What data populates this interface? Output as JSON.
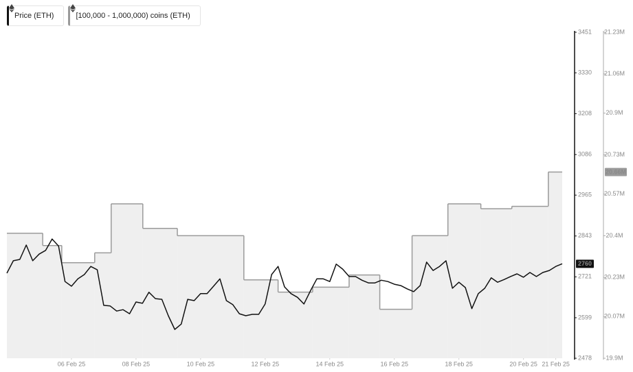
{
  "chart_data": {
    "type": "line",
    "xlim": [
      4,
      21.2
    ],
    "xticks": [
      {
        "value": 6,
        "label": "06 Feb 25"
      },
      {
        "value": 8,
        "label": "08 Feb 25"
      },
      {
        "value": 10,
        "label": "10 Feb 25"
      },
      {
        "value": 12,
        "label": "12 Feb 25"
      },
      {
        "value": 14,
        "label": "14 Feb 25"
      },
      {
        "value": 16,
        "label": "16 Feb 25"
      },
      {
        "value": 18,
        "label": "18 Feb 25"
      },
      {
        "value": 20,
        "label": "20 Feb 25"
      },
      {
        "value": 21,
        "label": "21 Feb 25"
      }
    ],
    "ylim": [
      2478,
      3451
    ],
    "yticks": [
      2478,
      2599,
      2721,
      2843,
      2965,
      3086,
      3208,
      3330,
      3451
    ],
    "y2lim": [
      19.9,
      21.23
    ],
    "y2ticks": [
      {
        "value": 19.9,
        "label": "19.9M"
      },
      {
        "value": 20.07,
        "label": "20.07M"
      },
      {
        "value": 20.23,
        "label": "20.23M"
      },
      {
        "value": 20.4,
        "label": "20.4M"
      },
      {
        "value": 20.57,
        "label": "20.57M"
      },
      {
        "value": 20.73,
        "label": "20.73M"
      },
      {
        "value": 20.9,
        "label": "20.9M"
      },
      {
        "value": 21.06,
        "label": "21.06M"
      },
      {
        "value": 21.23,
        "label": "21.23M"
      }
    ],
    "series": [
      {
        "name": "Price (ETH)",
        "color": "#111111",
        "x": [
          4,
          4.2,
          4.4,
          4.6,
          4.8,
          5,
          5.2,
          5.4,
          5.6,
          5.8,
          6,
          6.2,
          6.4,
          6.6,
          6.8,
          7,
          7.2,
          7.4,
          7.6,
          7.8,
          8,
          8.2,
          8.4,
          8.6,
          8.8,
          9,
          9.2,
          9.4,
          9.6,
          9.8,
          10,
          10.2,
          10.4,
          10.6,
          10.8,
          11,
          11.2,
          11.4,
          11.6,
          11.8,
          12,
          12.2,
          12.4,
          12.6,
          12.8,
          13,
          13.2,
          13.4,
          13.6,
          13.8,
          14,
          14.2,
          14.4,
          14.6,
          14.8,
          15,
          15.2,
          15.4,
          15.6,
          15.8,
          16,
          16.2,
          16.4,
          16.6,
          16.8,
          17,
          17.2,
          17.4,
          17.6,
          17.8,
          18,
          18.2,
          18.4,
          18.6,
          18.8,
          19,
          19.2,
          19.4,
          19.6,
          19.8,
          20,
          20.2,
          20.4,
          20.6,
          20.8,
          21,
          21.2
        ],
        "values": [
          2732,
          2769,
          2773,
          2816,
          2769,
          2789,
          2800,
          2834,
          2813,
          2707,
          2693,
          2715,
          2728,
          2752,
          2742,
          2636,
          2634,
          2619,
          2623,
          2611,
          2646,
          2642,
          2675,
          2656,
          2654,
          2605,
          2564,
          2580,
          2654,
          2650,
          2671,
          2671,
          2693,
          2715,
          2650,
          2638,
          2611,
          2605,
          2609,
          2609,
          2640,
          2728,
          2752,
          2691,
          2671,
          2660,
          2640,
          2679,
          2715,
          2715,
          2707,
          2759,
          2744,
          2722,
          2722,
          2711,
          2703,
          2703,
          2711,
          2707,
          2699,
          2695,
          2685,
          2677,
          2695,
          2765,
          2740,
          2752,
          2769,
          2687,
          2705,
          2689,
          2626,
          2671,
          2687,
          2718,
          2705,
          2713,
          2722,
          2730,
          2720,
          2734,
          2722,
          2734,
          2740,
          2752,
          2760
        ]
      },
      {
        "name": "[100,000 - 1,000,000) coins (ETH)",
        "color": "#9a9a9a",
        "fill": "#efefef",
        "axis": "y2",
        "step": true,
        "x": [
          4,
          5.11,
          5.7,
          6.72,
          7.23,
          8.21,
          9.28,
          11.34,
          12.4,
          13.47,
          14.6,
          15.55,
          16.55,
          17.66,
          18.68,
          19.64,
          20.77
        ],
        "values": [
          20.41,
          20.36,
          20.29,
          20.33,
          20.53,
          20.43,
          20.4,
          20.22,
          20.17,
          20.19,
          20.24,
          20.1,
          20.4,
          20.53,
          20.51,
          20.52,
          20.66
        ],
        "value_labels": [
          null,
          null,
          null,
          null,
          null,
          null,
          null,
          null,
          null,
          null,
          null,
          null,
          null,
          null,
          null,
          null,
          "20.66M"
        ]
      }
    ]
  }
}
